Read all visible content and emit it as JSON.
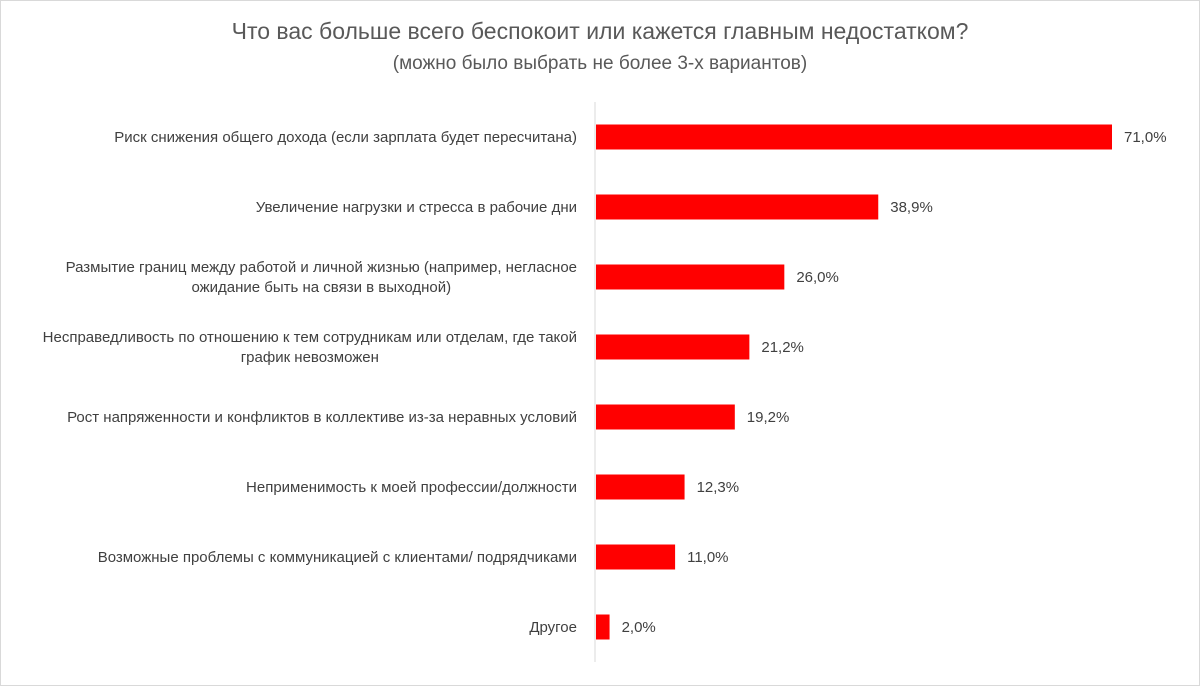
{
  "chart_data": {
    "type": "bar",
    "orientation": "horizontal",
    "title": "Что вас больше всего беспокоит или кажется главным недостатком?",
    "subtitle": "(можно было выбрать не более 3-х вариантов)",
    "bar_color": "#ff0000",
    "xlim": [
      0,
      71
    ],
    "grid": false,
    "categories": [
      [
        "Риск снижения общего дохода (если зарплата будет пересчитана)"
      ],
      [
        "Увеличение нагрузки и стресса в рабочие дни"
      ],
      [
        "Размытие границ между работой и личной жизнью (например, негласное",
        "ожидание быть на связи в выходной)"
      ],
      [
        "Несправедливость по отношению к тем сотрудникам или отделам, где такой",
        "график невозможен"
      ],
      [
        "Рост напряженности и конфликтов в коллективе из-за неравных условий"
      ],
      [
        "Неприменимость к моей профессии/должности"
      ],
      [
        "Возможные проблемы с коммуникацией с клиентами/ подрядчиками"
      ],
      [
        "Другое"
      ]
    ],
    "values": [
      71.0,
      38.9,
      26.0,
      21.2,
      19.2,
      12.3,
      11.0,
      2.0
    ],
    "value_labels": [
      "71,0%",
      "38,9%",
      "26,0%",
      "21,2%",
      "19,2%",
      "12,3%",
      "11,0%",
      "2,0%"
    ]
  }
}
